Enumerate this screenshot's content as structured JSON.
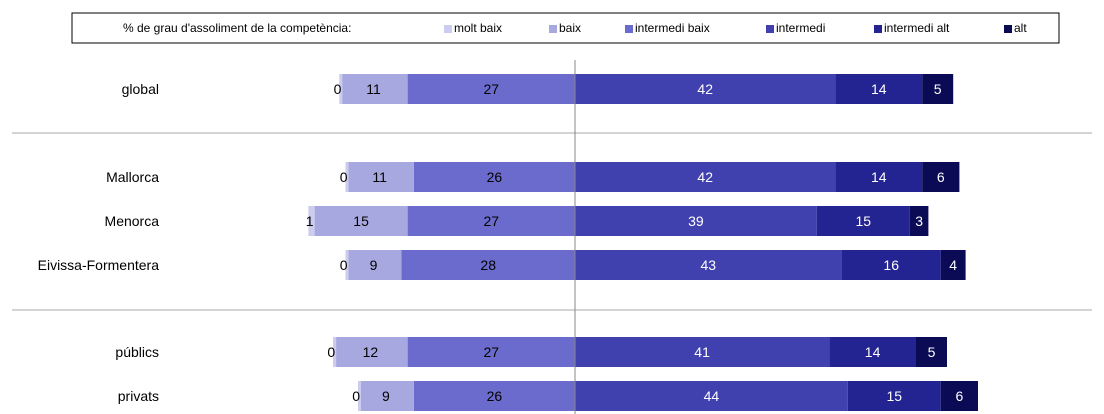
{
  "chart_data": {
    "type": "bar",
    "stacking": "diverging",
    "legend_title": "% de grau d'assoliment de la competència:",
    "legend_position": "top",
    "series": [
      {
        "name": "molt baix",
        "color": "#CCCCEE"
      },
      {
        "name": "baix",
        "color": "#A8A8E0"
      },
      {
        "name": "intermedi baix",
        "color": "#6B6BCD"
      },
      {
        "name": "intermedi",
        "color": "#4040AF"
      },
      {
        "name": "intermedi alt",
        "color": "#232391"
      },
      {
        "name": "alt",
        "color": "#0A0A55"
      }
    ],
    "groups": [
      {
        "rows": [
          {
            "label": "global",
            "values": [
              0,
              11,
              27,
              42,
              14,
              5
            ]
          }
        ]
      },
      {
        "rows": [
          {
            "label": "Mallorca",
            "values": [
              0,
              11,
              26,
              42,
              14,
              6
            ]
          },
          {
            "label": "Menorca",
            "values": [
              1,
              15,
              27,
              39,
              15,
              3
            ]
          },
          {
            "label": "Eivissa-Formentera",
            "values": [
              0,
              9,
              28,
              43,
              16,
              4
            ]
          }
        ]
      },
      {
        "rows": [
          {
            "label": "públics",
            "values": [
              0,
              12,
              27,
              41,
              14,
              5
            ]
          },
          {
            "label": "privats",
            "values": [
              0,
              9,
              26,
              44,
              15,
              6
            ]
          }
        ]
      }
    ]
  }
}
